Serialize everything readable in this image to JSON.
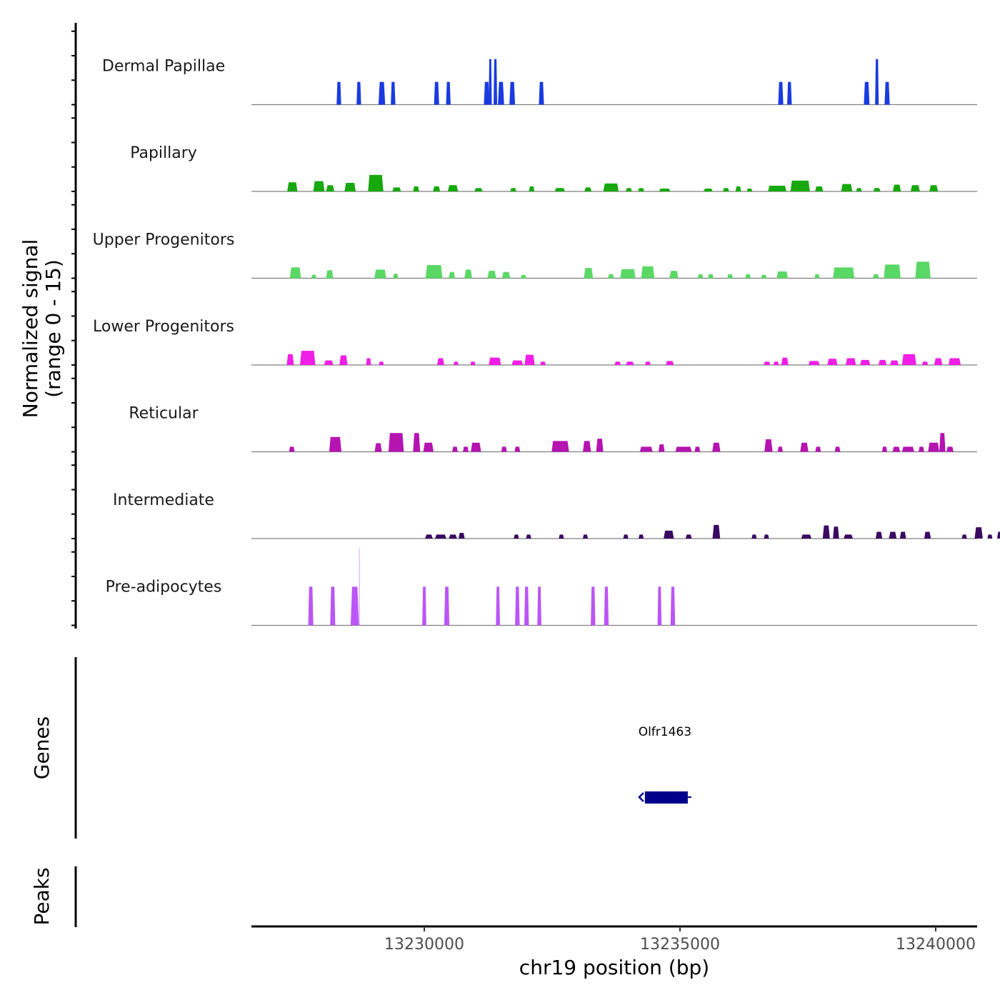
{
  "chart_data": {
    "type": "area",
    "title": "",
    "ylabel_line1": "Normalized signal",
    "ylabel_line2": "(range 0 - 15)",
    "ylim": [
      0,
      15
    ],
    "xlabel": "chr19 position (bp)",
    "xlim": [
      13226620,
      13240810
    ],
    "x_ticks": [
      13230000,
      13235000,
      13240000
    ],
    "x_tick_labels": [
      "13230000",
      "13235000",
      "13240000"
    ],
    "grid": false,
    "legend": "none",
    "tracks": [
      {
        "name": "Dermal Papillae",
        "color": "#1a3be0",
        "peaks": [
          [
            13228330,
            90,
            4
          ],
          [
            13228720,
            90,
            4
          ],
          [
            13229170,
            130,
            4
          ],
          [
            13229390,
            90,
            4
          ],
          [
            13230240,
            100,
            4
          ],
          [
            13230470,
            90,
            4
          ],
          [
            13231220,
            110,
            4
          ],
          [
            13231290,
            60,
            8
          ],
          [
            13231390,
            70,
            8
          ],
          [
            13231500,
            120,
            4
          ],
          [
            13231720,
            110,
            4
          ],
          [
            13232290,
            100,
            4
          ],
          [
            13236970,
            100,
            4
          ],
          [
            13237140,
            90,
            4
          ],
          [
            13238650,
            110,
            4
          ],
          [
            13238850,
            70,
            8
          ],
          [
            13239050,
            100,
            4
          ]
        ]
      },
      {
        "name": "Papillary",
        "color": "#17a80d",
        "peaks": [
          [
            13227420,
            200,
            1.6
          ],
          [
            13227940,
            220,
            1.8
          ],
          [
            13228160,
            160,
            1.1
          ],
          [
            13228550,
            220,
            1.5
          ],
          [
            13229050,
            300,
            2.9
          ],
          [
            13229460,
            170,
            0.7
          ],
          [
            13229840,
            120,
            0.9
          ],
          [
            13230240,
            140,
            0.9
          ],
          [
            13230560,
            200,
            1.1
          ],
          [
            13231060,
            160,
            0.6
          ],
          [
            13231740,
            120,
            0.6
          ],
          [
            13232100,
            110,
            0.9
          ],
          [
            13232650,
            200,
            0.6
          ],
          [
            13233200,
            140,
            0.7
          ],
          [
            13233650,
            300,
            1.4
          ],
          [
            13234000,
            120,
            0.6
          ],
          [
            13234240,
            120,
            0.6
          ],
          [
            13234700,
            220,
            0.5
          ],
          [
            13235550,
            180,
            0.5
          ],
          [
            13235900,
            120,
            0.6
          ],
          [
            13236140,
            110,
            0.9
          ],
          [
            13236360,
            110,
            0.5
          ],
          [
            13236900,
            360,
            1.0
          ],
          [
            13237350,
            380,
            1.9
          ],
          [
            13237720,
            160,
            0.9
          ],
          [
            13238260,
            220,
            1.3
          ],
          [
            13238500,
            110,
            0.6
          ],
          [
            13238850,
            140,
            0.6
          ],
          [
            13239240,
            160,
            1.2
          ],
          [
            13239600,
            180,
            1.1
          ],
          [
            13239960,
            170,
            1.1
          ]
        ]
      },
      {
        "name": "Upper Progenitors",
        "color": "#5ad865",
        "peaks": [
          [
            13227480,
            220,
            1.9
          ],
          [
            13227840,
            100,
            0.6
          ],
          [
            13228150,
            140,
            1.4
          ],
          [
            13229140,
            230,
            1.5
          ],
          [
            13229440,
            100,
            0.8
          ],
          [
            13230190,
            330,
            2.3
          ],
          [
            13230540,
            120,
            1.1
          ],
          [
            13230860,
            150,
            1.5
          ],
          [
            13231320,
            170,
            1.3
          ],
          [
            13231600,
            160,
            1.1
          ],
          [
            13231940,
            110,
            0.6
          ],
          [
            13233210,
            180,
            1.8
          ],
          [
            13233650,
            120,
            0.7
          ],
          [
            13233980,
            300,
            1.6
          ],
          [
            13234370,
            260,
            2.1
          ],
          [
            13234880,
            170,
            1.3
          ],
          [
            13235400,
            110,
            0.7
          ],
          [
            13235600,
            110,
            0.7
          ],
          [
            13235980,
            110,
            0.7
          ],
          [
            13236330,
            110,
            0.7
          ],
          [
            13236640,
            110,
            0.6
          ],
          [
            13237000,
            220,
            1.2
          ],
          [
            13237680,
            100,
            0.7
          ],
          [
            13238200,
            420,
            1.9
          ],
          [
            13238830,
            120,
            0.7
          ],
          [
            13239150,
            330,
            2.4
          ],
          [
            13239750,
            300,
            2.9
          ]
        ]
      },
      {
        "name": "Lower Progenitors",
        "color": "#f01ee6",
        "peaks": [
          [
            13227380,
            140,
            1.9
          ],
          [
            13227720,
            300,
            2.5
          ],
          [
            13228130,
            180,
            0.8
          ],
          [
            13228420,
            160,
            1.7
          ],
          [
            13228910,
            100,
            1.2
          ],
          [
            13229160,
            100,
            0.6
          ],
          [
            13230320,
            140,
            1.2
          ],
          [
            13230620,
            100,
            0.6
          ],
          [
            13230950,
            100,
            0.6
          ],
          [
            13231380,
            240,
            1.3
          ],
          [
            13231820,
            220,
            0.8
          ],
          [
            13232060,
            200,
            1.8
          ],
          [
            13232320,
            110,
            0.6
          ],
          [
            13233780,
            120,
            0.6
          ],
          [
            13234020,
            160,
            0.6
          ],
          [
            13234370,
            110,
            0.6
          ],
          [
            13234800,
            160,
            0.7
          ],
          [
            13236700,
            130,
            0.6
          ],
          [
            13236880,
            110,
            0.6
          ],
          [
            13237050,
            140,
            1.3
          ],
          [
            13237620,
            220,
            0.7
          ],
          [
            13237980,
            200,
            1.1
          ],
          [
            13238340,
            200,
            1.2
          ],
          [
            13238620,
            200,
            0.9
          ],
          [
            13238960,
            160,
            0.9
          ],
          [
            13239190,
            170,
            0.8
          ],
          [
            13239480,
            280,
            1.9
          ],
          [
            13239790,
            120,
            0.6
          ],
          [
            13240050,
            160,
            1.2
          ],
          [
            13240370,
            240,
            1.2
          ]
        ]
      },
      {
        "name": "Reticular",
        "color": "#b514b1",
        "peaks": [
          [
            13227410,
            110,
            0.9
          ],
          [
            13228260,
            240,
            2.6
          ],
          [
            13229100,
            140,
            1.5
          ],
          [
            13229450,
            300,
            3.3
          ],
          [
            13229850,
            140,
            3.3
          ],
          [
            13230080,
            200,
            1.6
          ],
          [
            13230600,
            110,
            0.9
          ],
          [
            13230810,
            110,
            0.9
          ],
          [
            13231010,
            200,
            1.6
          ],
          [
            13231560,
            110,
            0.9
          ],
          [
            13231820,
            110,
            0.9
          ],
          [
            13232660,
            340,
            1.9
          ],
          [
            13233180,
            160,
            1.9
          ],
          [
            13233430,
            140,
            2.3
          ],
          [
            13234340,
            250,
            0.9
          ],
          [
            13234640,
            120,
            1.3
          ],
          [
            13235070,
            320,
            0.9
          ],
          [
            13235340,
            110,
            0.9
          ],
          [
            13235710,
            160,
            1.6
          ],
          [
            13236730,
            160,
            2.2
          ],
          [
            13236960,
            100,
            0.9
          ],
          [
            13237430,
            160,
            1.6
          ],
          [
            13237700,
            110,
            0.9
          ],
          [
            13238080,
            110,
            0.9
          ],
          [
            13239000,
            100,
            0.9
          ],
          [
            13239230,
            150,
            0.9
          ],
          [
            13239460,
            240,
            0.9
          ],
          [
            13239720,
            110,
            0.9
          ],
          [
            13239960,
            220,
            1.6
          ],
          [
            13240130,
            120,
            3.3
          ],
          [
            13240280,
            140,
            0.9
          ]
        ]
      },
      {
        "name": "Intermediate",
        "color": "#3a0a62",
        "peaks": [
          [
            13227120,
            0,
            0
          ],
          [
            13230090,
            150,
            0.7
          ],
          [
            13230320,
            220,
            0.7
          ],
          [
            13230560,
            160,
            0.7
          ],
          [
            13230730,
            120,
            1.0
          ],
          [
            13231800,
            100,
            0.7
          ],
          [
            13232040,
            100,
            0.7
          ],
          [
            13232680,
            100,
            0.7
          ],
          [
            13233150,
            100,
            0.7
          ],
          [
            13233940,
            100,
            0.7
          ],
          [
            13234240,
            100,
            0.7
          ],
          [
            13234780,
            200,
            1.4
          ],
          [
            13235170,
            120,
            0.7
          ],
          [
            13235710,
            150,
            2.4
          ],
          [
            13236450,
            100,
            0.7
          ],
          [
            13236690,
            100,
            0.7
          ],
          [
            13237470,
            200,
            0.7
          ],
          [
            13237860,
            140,
            2.3
          ],
          [
            13238050,
            120,
            2.1
          ],
          [
            13238290,
            180,
            0.7
          ],
          [
            13238890,
            130,
            1.2
          ],
          [
            13239160,
            150,
            1.2
          ],
          [
            13239360,
            120,
            1.2
          ],
          [
            13239840,
            130,
            1.2
          ],
          [
            13240560,
            100,
            0.7
          ],
          [
            13240840,
            160,
            2.0
          ],
          [
            13241060,
            100,
            0.7
          ],
          [
            13241260,
            120,
            1.2
          ]
        ]
      },
      {
        "name": "Pre-adipocytes",
        "color": "#bb55f5",
        "peaks": [
          [
            13227780,
            100,
            6.8
          ],
          [
            13228210,
            100,
            6.8
          ],
          [
            13228640,
            160,
            6.8
          ],
          [
            13228730,
            10,
            13.6
          ],
          [
            13230000,
            80,
            6.8
          ],
          [
            13230440,
            100,
            6.8
          ],
          [
            13231440,
            80,
            6.8
          ],
          [
            13231820,
            90,
            6.8
          ],
          [
            13232000,
            90,
            6.8
          ],
          [
            13232250,
            80,
            6.8
          ],
          [
            13233300,
            90,
            6.8
          ],
          [
            13233560,
            90,
            6.8
          ],
          [
            13234600,
            80,
            6.8
          ],
          [
            13234860,
            90,
            6.8
          ]
        ]
      }
    ],
    "genes": {
      "label": "Genes",
      "items": [
        {
          "name": "Olfr1463",
          "start": 13234230,
          "end": 13235180,
          "strand": "-",
          "color": "#00008b"
        }
      ]
    },
    "peaks_track": {
      "label": "Peaks",
      "items": []
    }
  }
}
